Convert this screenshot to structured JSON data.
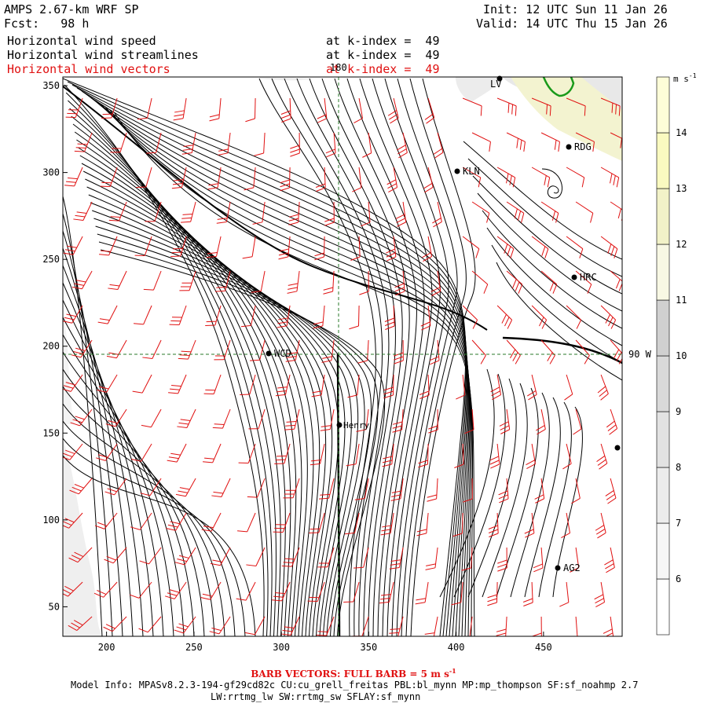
{
  "header": {
    "model": "AMPS 2.67-km WRF SP",
    "fcst": "Fcst:   98 h",
    "init": "Init: 12 UTC Sun 11 Jan 26",
    "valid": "Valid: 14 UTC Thu 15 Jan 26",
    "fields": [
      {
        "label": "Horizontal wind speed",
        "level": "at k-index =  49",
        "color": "#000000"
      },
      {
        "label": "Horizontal wind streamlines",
        "level": "at k-index =  49",
        "color": "#000000"
      },
      {
        "label": "Horizontal wind vectors",
        "level": "at k-index =  49",
        "color": "#e01010"
      }
    ]
  },
  "map": {
    "x_ticks": [
      "200",
      "250",
      "300",
      "350",
      "400",
      "450"
    ],
    "y_ticks": [
      "50",
      "100",
      "150",
      "200",
      "250",
      "300",
      "350"
    ],
    "meridian_label": "180",
    "parallel_label": "90 W",
    "stations": [
      {
        "id": "LV",
        "label": "LV"
      },
      {
        "id": "RDG",
        "label": "RDG"
      },
      {
        "id": "KLN",
        "label": "KLN"
      },
      {
        "id": "HRC",
        "label": "HRC"
      },
      {
        "id": "WCD",
        "label": "WCD"
      },
      {
        "id": "henry",
        "label": "Henry"
      },
      {
        "id": "AG2",
        "label": "AG2"
      },
      {
        "id": "unlabeled",
        "label": ""
      }
    ]
  },
  "colorbar": {
    "unit": "m s",
    "unit_exp": "-1",
    "levels": [
      "6",
      "7",
      "8",
      "9",
      "10",
      "11",
      "12",
      "13",
      "14"
    ],
    "colors": [
      "#ffffff",
      "#f6f6f6",
      "#ececec",
      "#e2e2e2",
      "#d9d9d9",
      "#d0d0d0",
      "#f8f8e4",
      "#f2f2c8",
      "#fafac0",
      "#fdfdd8"
    ]
  },
  "footer": {
    "barb_note": "BARB VECTORS:  FULL BARB = 5 m s",
    "barb_exp": "-1",
    "model_info": "Model Info: MPASv8.2.3-194-gf29cd82c CU:cu_grell_freitas PBL:bl_mynn MP:mp_thompson SF:sf_noahmp 2.7",
    "model_info2": "LW:rrtmg_lw SW:rrtmg_sw SFLAY:sf_mynn"
  },
  "colors": {
    "barb": "#e01010",
    "streamline": "#000000",
    "grid": "#2a7a2a",
    "contour": "#1a9a1a"
  }
}
